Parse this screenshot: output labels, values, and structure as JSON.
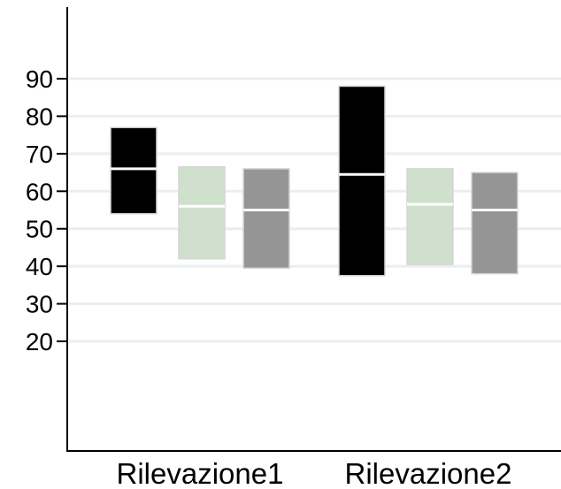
{
  "chart_data": {
    "type": "box",
    "categories": [
      "Rilevazione1",
      "Rilevazione2"
    ],
    "yticks": [
      20,
      30,
      40,
      50,
      60,
      70,
      80,
      90
    ],
    "ylim": [
      0,
      100
    ],
    "grid": true,
    "series": [
      {
        "color": "#000000",
        "median_color": "#ffffff",
        "boxes": [
          {
            "category": "Rilevazione1",
            "low": 54,
            "median": 66,
            "high": 77
          },
          {
            "category": "Rilevazione2",
            "low": 37.5,
            "median": 64.5,
            "high": 88
          }
        ]
      },
      {
        "color": "#cfe0cc",
        "median_color": "#ffffff",
        "boxes": [
          {
            "category": "Rilevazione1",
            "low": 42,
            "median": 56,
            "high": 66.5
          },
          {
            "category": "Rilevazione2",
            "low": 40.5,
            "median": 56.5,
            "high": 66
          }
        ]
      },
      {
        "color": "#959595",
        "median_color": "#ffffff",
        "boxes": [
          {
            "category": "Rilevazione1",
            "low": 39.5,
            "median": 55,
            "high": 66
          },
          {
            "category": "Rilevazione2",
            "low": 38,
            "median": 55,
            "high": 65
          }
        ]
      }
    ]
  }
}
